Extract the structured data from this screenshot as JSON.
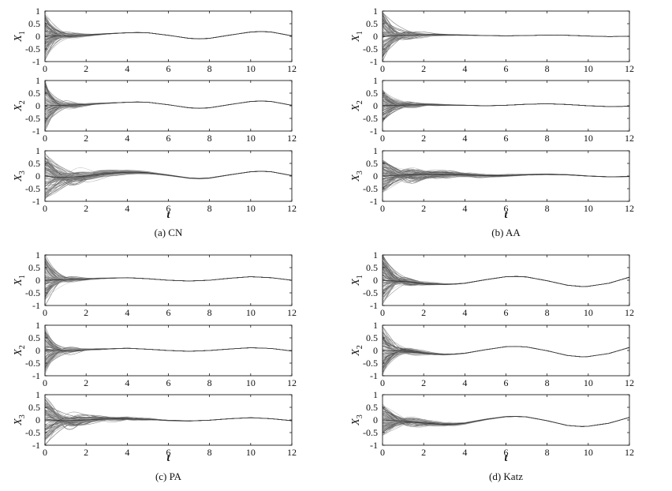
{
  "chart_data": [
    {
      "type": "line",
      "caption": "(a) CN",
      "xlabel": "t",
      "xlim": [
        0,
        12
      ],
      "x_ticks": [
        0,
        2,
        4,
        6,
        8,
        10,
        12
      ],
      "y_ticks": [
        -1,
        -0.5,
        0,
        0.5,
        1
      ],
      "ylim": [
        -1,
        1
      ],
      "n_trajectories": 100,
      "panels": [
        {
          "ylabel": "X",
          "ylabel_sub": "1",
          "x": [
            0,
            0.5,
            1,
            1.5,
            2,
            3,
            4,
            4.5,
            5,
            6,
            7,
            7.5,
            8,
            9,
            10,
            10.5,
            11,
            12
          ],
          "consensus": [
            0,
            0.01,
            0.02,
            0.03,
            0.05,
            0.1,
            0.14,
            0.15,
            0.14,
            0.04,
            -0.08,
            -0.1,
            -0.08,
            0.05,
            0.17,
            0.19,
            0.17,
            0.02
          ],
          "spread_at_0": 0.9,
          "decay": 0.5
        },
        {
          "ylabel": "X",
          "ylabel_sub": "2",
          "x": [
            0,
            0.5,
            1,
            1.5,
            2,
            3,
            4,
            4.5,
            5,
            6,
            7,
            7.5,
            8,
            9,
            10,
            10.5,
            11,
            12
          ],
          "consensus": [
            0,
            0.01,
            0.02,
            0.03,
            0.05,
            0.1,
            0.14,
            0.15,
            0.14,
            0.04,
            -0.08,
            -0.1,
            -0.08,
            0.05,
            0.17,
            0.19,
            0.17,
            0.02
          ],
          "spread_at_0": 0.9,
          "decay": 0.5
        },
        {
          "ylabel": "X",
          "ylabel_sub": "3",
          "x": [
            0,
            0.5,
            1,
            1.5,
            2,
            3,
            4,
            4.5,
            5,
            6,
            7,
            7.5,
            8,
            9,
            10,
            10.5,
            11,
            12
          ],
          "consensus": [
            0,
            -0.05,
            -0.05,
            -0.03,
            0,
            0.1,
            0.15,
            0.15,
            0.13,
            0.03,
            -0.08,
            -0.1,
            -0.08,
            0.05,
            0.17,
            0.19,
            0.17,
            0.02
          ],
          "spread_at_0": 0.9,
          "decay": 1.2
        }
      ]
    },
    {
      "type": "line",
      "caption": "(b) AA",
      "xlabel": "t",
      "xlim": [
        0,
        12
      ],
      "x_ticks": [
        0,
        2,
        4,
        6,
        8,
        10,
        12
      ],
      "y_ticks": [
        -1,
        -0.5,
        0,
        0.5,
        1
      ],
      "ylim": [
        -1,
        1
      ],
      "n_trajectories": 100,
      "panels": [
        {
          "ylabel": "X",
          "ylabel_sub": "1",
          "x": [
            0,
            1,
            2,
            3,
            4,
            5,
            6,
            7,
            8,
            9,
            10,
            11,
            12
          ],
          "consensus": [
            0,
            0.05,
            0.06,
            0.06,
            0.05,
            0.03,
            0.02,
            0.03,
            0.05,
            0.04,
            0.01,
            -0.01,
            0.0
          ],
          "spread_at_0": 0.9,
          "decay": 0.6
        },
        {
          "ylabel": "X",
          "ylabel_sub": "2",
          "x": [
            0,
            1,
            2,
            3,
            4,
            5,
            6,
            7,
            8,
            9,
            10,
            11,
            12
          ],
          "consensus": [
            0,
            0.03,
            0.04,
            0.03,
            0.02,
            0.0,
            0.02,
            0.06,
            0.08,
            0.05,
            0.0,
            -0.03,
            -0.02
          ],
          "spread_at_0": 0.6,
          "decay": 0.6
        },
        {
          "ylabel": "X",
          "ylabel_sub": "3",
          "x": [
            0,
            1,
            2,
            3,
            4,
            5,
            6,
            7,
            8,
            9,
            10,
            11,
            12
          ],
          "consensus": [
            0,
            0.04,
            0.06,
            0.05,
            0.04,
            0.02,
            0.02,
            0.05,
            0.07,
            0.05,
            0.0,
            -0.03,
            -0.02
          ],
          "spread_at_0": 0.6,
          "decay": 1.5
        }
      ]
    },
    {
      "type": "line",
      "caption": "(c) PA",
      "xlabel": "t",
      "xlim": [
        0,
        12
      ],
      "x_ticks": [
        0,
        2,
        4,
        6,
        8,
        10,
        12
      ],
      "y_ticks": [
        -1,
        -0.5,
        0,
        0.5,
        1
      ],
      "ylim": [
        -1,
        1
      ],
      "n_trajectories": 100,
      "panels": [
        {
          "ylabel": "X",
          "ylabel_sub": "1",
          "x": [
            0,
            1,
            2,
            3,
            4,
            5,
            6,
            7,
            8,
            9,
            10,
            11,
            12
          ],
          "consensus": [
            0,
            0.02,
            0.05,
            0.08,
            0.1,
            0.06,
            0.0,
            -0.03,
            0.0,
            0.08,
            0.14,
            0.1,
            0.0
          ],
          "spread_at_0": 0.9,
          "decay": 0.45
        },
        {
          "ylabel": "X",
          "ylabel_sub": "2",
          "x": [
            0,
            1,
            2,
            3,
            4,
            5,
            6,
            7,
            8,
            9,
            10,
            11,
            12
          ],
          "consensus": [
            0,
            0.0,
            0.03,
            0.06,
            0.09,
            0.05,
            0.0,
            -0.03,
            0.0,
            0.06,
            0.11,
            0.08,
            -0.02
          ],
          "spread_at_0": 0.9,
          "decay": 0.45
        },
        {
          "ylabel": "X",
          "ylabel_sub": "3",
          "x": [
            0,
            1,
            2,
            3,
            4,
            5,
            6,
            7,
            8,
            9,
            10,
            11,
            12
          ],
          "consensus": [
            0,
            -0.03,
            0.0,
            0.04,
            0.06,
            0.03,
            -0.02,
            -0.04,
            -0.01,
            0.05,
            0.09,
            0.05,
            -0.03
          ],
          "spread_at_0": 0.9,
          "decay": 1.0
        }
      ]
    },
    {
      "type": "line",
      "caption": "(d) Katz",
      "xlabel": "t",
      "xlim": [
        0,
        12
      ],
      "x_ticks": [
        0,
        2,
        4,
        6,
        8,
        10,
        12
      ],
      "y_ticks": [
        -1,
        -0.5,
        0,
        0.5,
        1
      ],
      "ylim": [
        -1,
        1
      ],
      "n_trajectories": 100,
      "panels": [
        {
          "ylabel": "X",
          "ylabel_sub": "1",
          "x": [
            0,
            1,
            2,
            3,
            3.5,
            4,
            5,
            6,
            6.5,
            7,
            8,
            9,
            9.7,
            10,
            11,
            12
          ],
          "consensus": [
            0,
            -0.05,
            -0.12,
            -0.16,
            -0.15,
            -0.12,
            0.02,
            0.14,
            0.15,
            0.13,
            -0.02,
            -0.2,
            -0.25,
            -0.24,
            -0.12,
            0.12
          ],
          "spread_at_0": 0.9,
          "decay": 0.55
        },
        {
          "ylabel": "X",
          "ylabel_sub": "2",
          "x": [
            0,
            1,
            2,
            3,
            3.5,
            4,
            5,
            6,
            6.5,
            7,
            8,
            9,
            9.7,
            10,
            11,
            12
          ],
          "consensus": [
            0,
            -0.03,
            -0.1,
            -0.15,
            -0.14,
            -0.11,
            0.03,
            0.15,
            0.16,
            0.14,
            -0.01,
            -0.2,
            -0.25,
            -0.24,
            -0.12,
            0.12
          ],
          "spread_at_0": 0.9,
          "decay": 0.55
        },
        {
          "ylabel": "X",
          "ylabel_sub": "3",
          "x": [
            0,
            1,
            2,
            3,
            3.5,
            4,
            5,
            6,
            6.5,
            7,
            8,
            9,
            9.7,
            10,
            11,
            12
          ],
          "consensus": [
            0,
            -0.05,
            -0.12,
            -0.18,
            -0.17,
            -0.13,
            0.02,
            0.13,
            0.14,
            0.12,
            -0.03,
            -0.22,
            -0.26,
            -0.25,
            -0.13,
            0.1
          ],
          "spread_at_0": 0.6,
          "decay": 1.0
        }
      ]
    }
  ]
}
